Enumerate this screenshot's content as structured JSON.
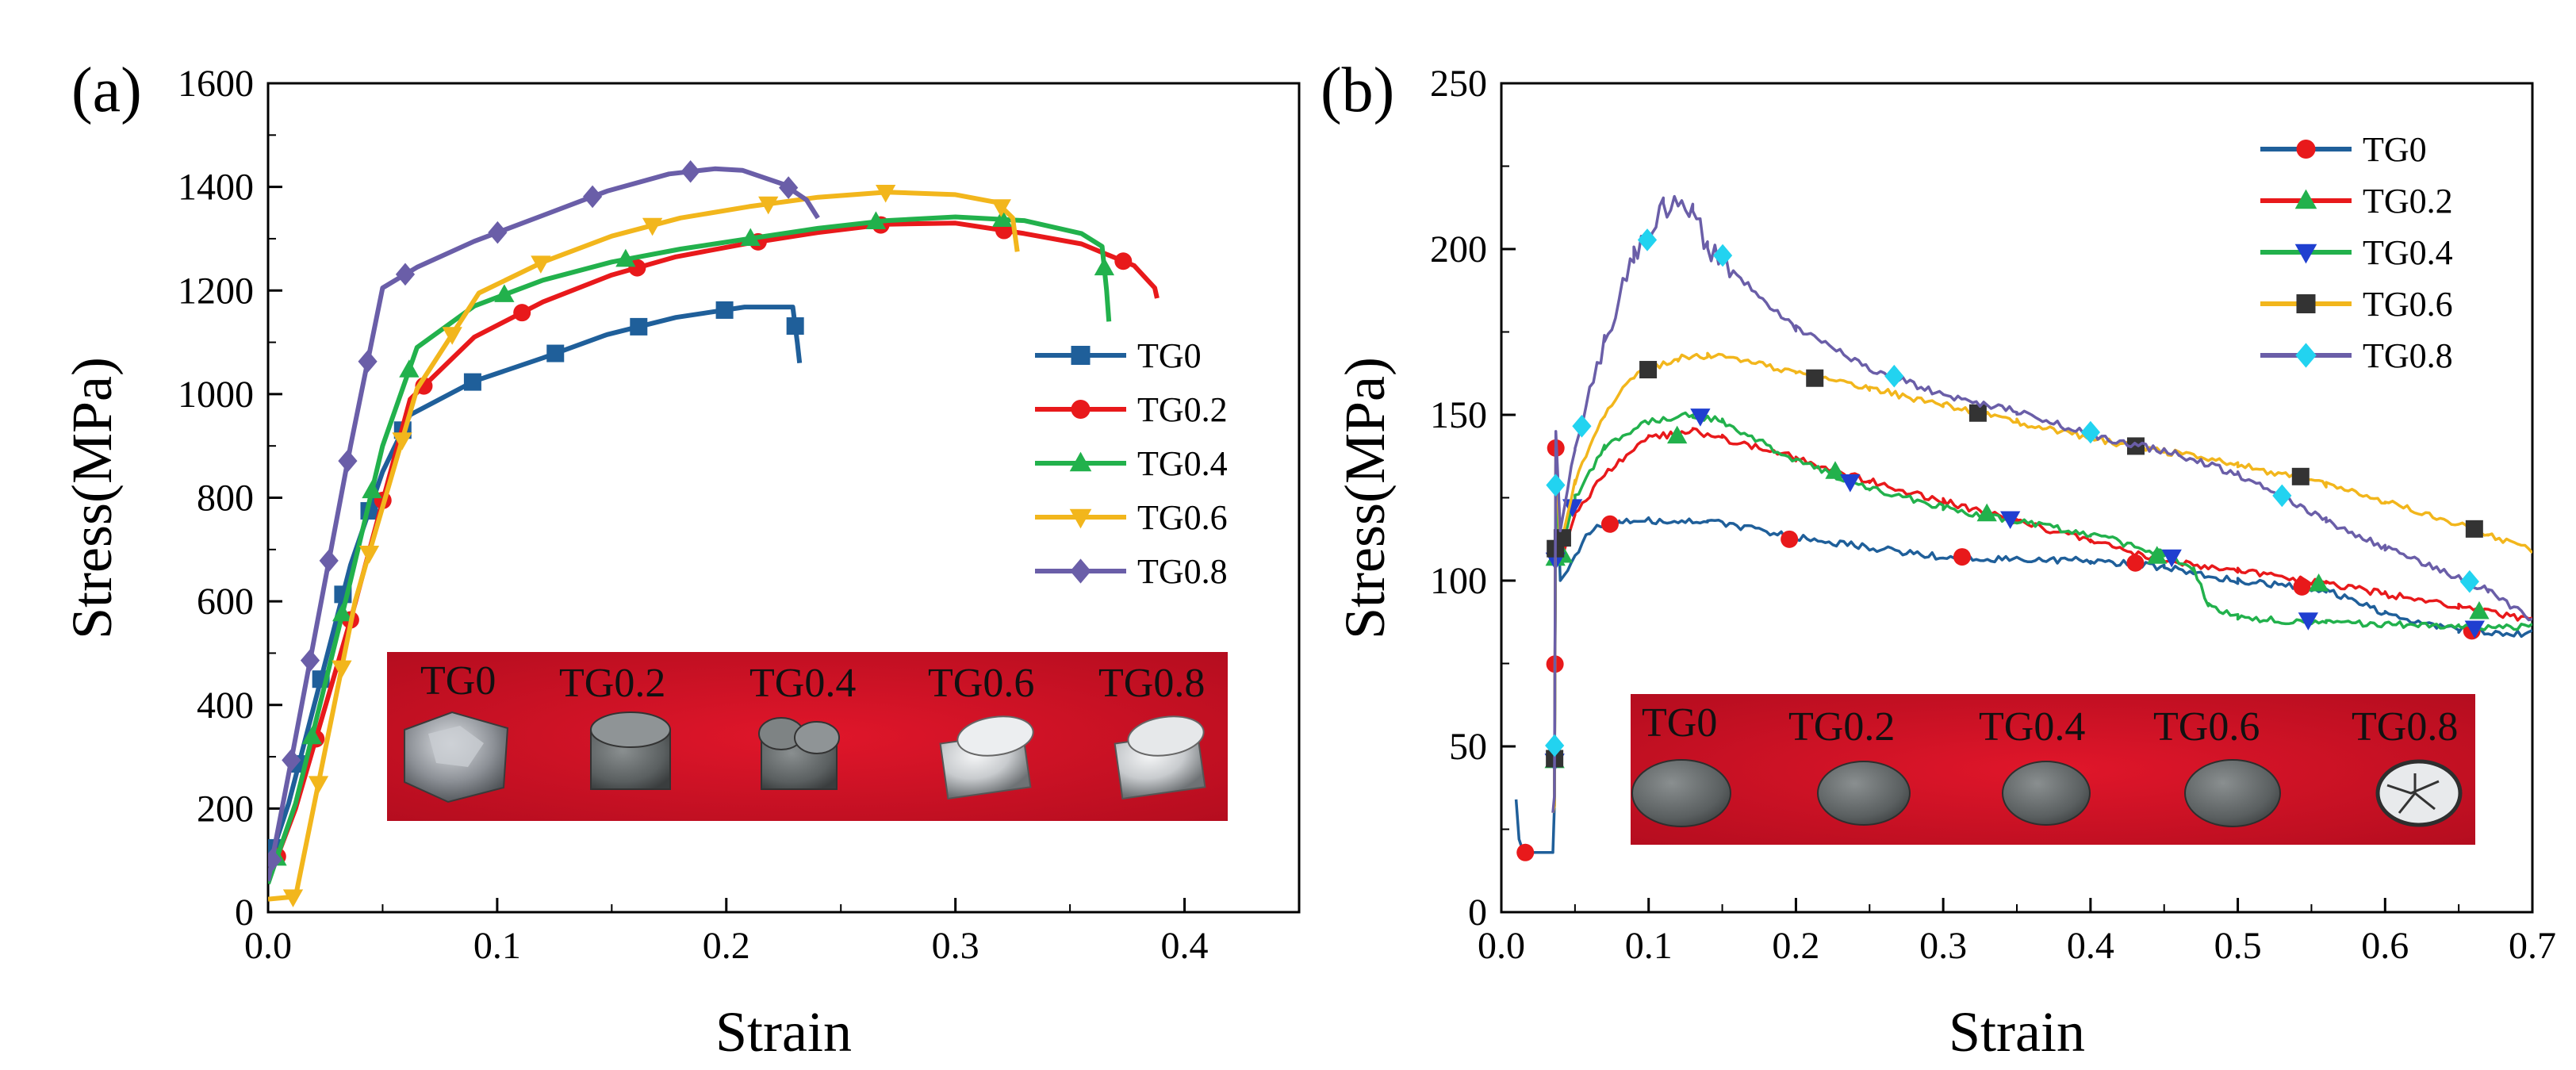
{
  "chart_data": [
    {
      "panel": "(a)",
      "type": "line",
      "xlabel": "Strain",
      "ylabel": "Stress(MPa)",
      "xlim": [
        0,
        0.45
      ],
      "ylim": [
        0,
        1600
      ],
      "xticks": [
        "0.0",
        "0.1",
        "0.2",
        "0.3",
        "0.4"
      ],
      "yticks": [
        "0",
        "200",
        "400",
        "600",
        "800",
        "1000",
        "1200",
        "1400",
        "1600"
      ],
      "legend_position": "right-middle",
      "inset_photo_labels": [
        "TG0",
        "TG0.2",
        "TG0.4",
        "TG0.6",
        "TG0.8"
      ],
      "series": [
        {
          "name": "TG0",
          "color": "#1f5f9a",
          "marker": "square",
          "points": [
            [
              0,
              90
            ],
            [
              0.009,
              210
            ],
            [
              0.036,
              670
            ],
            [
              0.05,
              850
            ],
            [
              0.062,
              960
            ],
            [
              0.09,
              1025
            ],
            [
              0.12,
              1070
            ],
            [
              0.148,
              1115
            ],
            [
              0.178,
              1148
            ],
            [
              0.208,
              1168
            ],
            [
              0.229,
              1168
            ],
            [
              0.231,
              1100
            ],
            [
              0.232,
              1060
            ]
          ]
        },
        {
          "name": "TG0.2",
          "color": "#e8191b",
          "marker": "circle",
          "points": [
            [
              0,
              60
            ],
            [
              0.012,
              200
            ],
            [
              0.037,
              580
            ],
            [
              0.062,
              990
            ],
            [
              0.09,
              1110
            ],
            [
              0.12,
              1178
            ],
            [
              0.15,
              1230
            ],
            [
              0.178,
              1265
            ],
            [
              0.208,
              1290
            ],
            [
              0.24,
              1312
            ],
            [
              0.27,
              1328
            ],
            [
              0.3,
              1330
            ],
            [
              0.33,
              1310
            ],
            [
              0.355,
              1290
            ],
            [
              0.378,
              1248
            ],
            [
              0.387,
              1205
            ],
            [
              0.388,
              1185
            ]
          ]
        },
        {
          "name": "TG0.4",
          "color": "#22b14c",
          "marker": "triangle-up",
          "points": [
            [
              0,
              55
            ],
            [
              0.012,
              210
            ],
            [
              0.036,
              640
            ],
            [
              0.05,
              900
            ],
            [
              0.065,
              1090
            ],
            [
              0.09,
              1170
            ],
            [
              0.12,
              1220
            ],
            [
              0.15,
              1255
            ],
            [
              0.18,
              1280
            ],
            [
              0.21,
              1300
            ],
            [
              0.24,
              1320
            ],
            [
              0.27,
              1335
            ],
            [
              0.3,
              1342
            ],
            [
              0.33,
              1335
            ],
            [
              0.355,
              1310
            ],
            [
              0.364,
              1285
            ],
            [
              0.366,
              1200
            ],
            [
              0.367,
              1140
            ]
          ]
        },
        {
          "name": "TG0.6",
          "color": "#f2b61c",
          "marker": "triangle-down",
          "points": [
            [
              0,
              25
            ],
            [
              0.012,
              30
            ],
            [
              0.038,
              600
            ],
            [
              0.065,
              1010
            ],
            [
              0.092,
              1195
            ],
            [
              0.12,
              1255
            ],
            [
              0.15,
              1305
            ],
            [
              0.18,
              1340
            ],
            [
              0.21,
              1362
            ],
            [
              0.24,
              1380
            ],
            [
              0.27,
              1390
            ],
            [
              0.3,
              1385
            ],
            [
              0.318,
              1370
            ],
            [
              0.325,
              1340
            ],
            [
              0.327,
              1275
            ]
          ]
        },
        {
          "name": "TG0.8",
          "color": "#6a5ea8",
          "marker": "diamond",
          "points": [
            [
              0,
              60
            ],
            [
              0.01,
              290
            ],
            [
              0.036,
              900
            ],
            [
              0.05,
              1205
            ],
            [
              0.065,
              1245
            ],
            [
              0.09,
              1295
            ],
            [
              0.12,
              1345
            ],
            [
              0.148,
              1392
            ],
            [
              0.175,
              1425
            ],
            [
              0.195,
              1435
            ],
            [
              0.207,
              1432
            ],
            [
              0.225,
              1405
            ],
            [
              0.235,
              1375
            ],
            [
              0.24,
              1340
            ]
          ]
        }
      ]
    },
    {
      "panel": "(b)",
      "type": "line",
      "xlabel": "Strain",
      "ylabel": "Stress(MPa)",
      "xlim": [
        0,
        0.7
      ],
      "ylim": [
        0,
        250
      ],
      "xticks": [
        "0.0",
        "0.1",
        "0.2",
        "0.3",
        "0.4",
        "0.5",
        "0.6",
        "0.7"
      ],
      "yticks": [
        "0",
        "50",
        "100",
        "150",
        "200",
        "250"
      ],
      "legend_position": "top-right",
      "inset_photo_labels": [
        "TG0",
        "TG0.2",
        "TG0.4",
        "TG0.6",
        "TG0.8"
      ],
      "series": [
        {
          "name": "TG0",
          "color": "#1f5f9a",
          "marker": "circle",
          "marker_color": "#e8191b",
          "points": [
            [
              0.01,
              34
            ],
            [
              0.012,
              22
            ],
            [
              0.015,
              18
            ],
            [
              0.035,
              18
            ],
            [
              0.036,
              32
            ],
            [
              0.037,
              140
            ],
            [
              0.04,
              100
            ],
            [
              0.045,
              103
            ],
            [
              0.06,
              115
            ],
            [
              0.08,
              118
            ],
            [
              0.1,
              118
            ],
            [
              0.14,
              118
            ],
            [
              0.2,
              113
            ],
            [
              0.3,
              107
            ],
            [
              0.4,
              106
            ],
            [
              0.45,
              104
            ],
            [
              0.5,
              100
            ],
            [
              0.56,
              97
            ],
            [
              0.6,
              90
            ],
            [
              0.65,
              85
            ],
            [
              0.7,
              84
            ]
          ]
        },
        {
          "name": "TG0.2",
          "color": "#e8191b",
          "marker": "triangle-up",
          "marker_color": "#22b14c",
          "points": [
            [
              0.035,
              30
            ],
            [
              0.036,
              32
            ],
            [
              0.037,
              135
            ],
            [
              0.04,
              105
            ],
            [
              0.05,
              120
            ],
            [
              0.07,
              132
            ],
            [
              0.1,
              143
            ],
            [
              0.13,
              145
            ],
            [
              0.15,
              143
            ],
            [
              0.2,
              137
            ],
            [
              0.25,
              130
            ],
            [
              0.3,
              124
            ],
            [
              0.35,
              118
            ],
            [
              0.4,
              112
            ],
            [
              0.45,
              106
            ],
            [
              0.5,
              103
            ],
            [
              0.56,
              99
            ],
            [
              0.6,
              96
            ],
            [
              0.65,
              92
            ],
            [
              0.7,
              88
            ]
          ]
        },
        {
          "name": "TG0.4",
          "color": "#22b14c",
          "marker": "triangle-down",
          "marker_color": "#1f3fd0",
          "points": [
            [
              0.035,
              30
            ],
            [
              0.036,
              32
            ],
            [
              0.037,
              130
            ],
            [
              0.04,
              108
            ],
            [
              0.05,
              125
            ],
            [
              0.07,
              140
            ],
            [
              0.1,
              148
            ],
            [
              0.13,
              150
            ],
            [
              0.15,
              148
            ],
            [
              0.2,
              136
            ],
            [
              0.25,
              128
            ],
            [
              0.3,
              122
            ],
            [
              0.35,
              118
            ],
            [
              0.4,
              114
            ],
            [
              0.45,
              108
            ],
            [
              0.47,
              103
            ],
            [
              0.48,
              93
            ],
            [
              0.5,
              89
            ],
            [
              0.56,
              87
            ],
            [
              0.6,
              87
            ],
            [
              0.65,
              86
            ],
            [
              0.7,
              86
            ]
          ]
        },
        {
          "name": "TG0.6",
          "color": "#f2b61c",
          "marker": "square",
          "marker_color": "#333333",
          "points": [
            [
              0.035,
              30
            ],
            [
              0.036,
              32
            ],
            [
              0.037,
              140
            ],
            [
              0.04,
              110
            ],
            [
              0.05,
              130
            ],
            [
              0.07,
              150
            ],
            [
              0.09,
              162
            ],
            [
              0.12,
              167
            ],
            [
              0.14,
              168
            ],
            [
              0.2,
              163
            ],
            [
              0.25,
              158
            ],
            [
              0.3,
              153
            ],
            [
              0.35,
              148
            ],
            [
              0.4,
              143
            ],
            [
              0.45,
              139
            ],
            [
              0.5,
              135
            ],
            [
              0.56,
              129
            ],
            [
              0.6,
              124
            ],
            [
              0.67,
              114
            ],
            [
              0.7,
              109
            ]
          ]
        },
        {
          "name": "TG0.8",
          "color": "#6a5ea8",
          "marker": "diamond",
          "marker_color": "#22d3f0",
          "points": [
            [
              0.035,
              30
            ],
            [
              0.036,
              35
            ],
            [
              0.037,
              145
            ],
            [
              0.04,
              115
            ],
            [
              0.05,
              140
            ],
            [
              0.07,
              172
            ],
            [
              0.09,
              198
            ],
            [
              0.11,
              213
            ],
            [
              0.13,
              212
            ],
            [
              0.14,
              200
            ],
            [
              0.2,
              176
            ],
            [
              0.25,
              164
            ],
            [
              0.3,
              156
            ],
            [
              0.35,
              151
            ],
            [
              0.4,
              144
            ],
            [
              0.46,
              138
            ],
            [
              0.5,
              132
            ],
            [
              0.56,
              118
            ],
            [
              0.6,
              110
            ],
            [
              0.67,
              97
            ],
            [
              0.7,
              88
            ]
          ]
        }
      ]
    }
  ]
}
